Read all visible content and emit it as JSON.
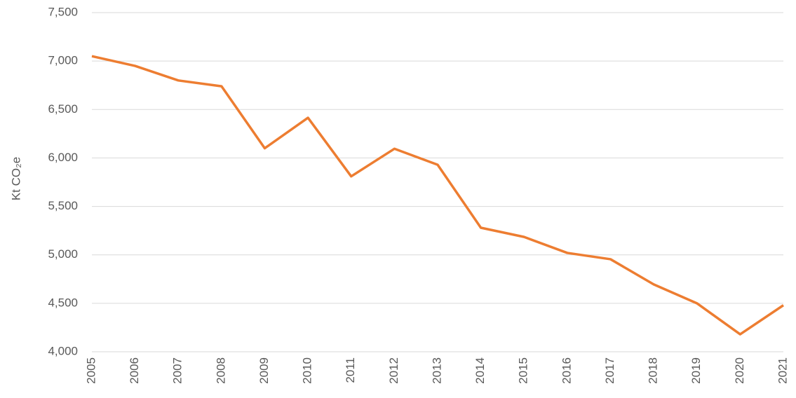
{
  "chart_data": {
    "type": "line",
    "y_label": "Kt CO₂e",
    "categories": [
      "2005",
      "2006",
      "2007",
      "2008",
      "2009",
      "2010",
      "2011",
      "2012",
      "2013",
      "2014",
      "2015",
      "2016",
      "2017",
      "2018",
      "2019",
      "2020",
      "2021"
    ],
    "series": [
      {
        "color": "#ed7d31",
        "values": [
          7050,
          6950,
          6800,
          6740,
          6100,
          6415,
          5810,
          6095,
          5930,
          5280,
          5185,
          5020,
          4955,
          4695,
          4500,
          4180,
          4480
        ]
      }
    ],
    "ylim": [
      4000,
      7500
    ],
    "yticks": [
      {
        "value": 4000,
        "label": "4,000"
      },
      {
        "value": 4500,
        "label": "4,500"
      },
      {
        "value": 5000,
        "label": "5,000"
      },
      {
        "value": 5500,
        "label": "5,500"
      },
      {
        "value": 6000,
        "label": "6,000"
      },
      {
        "value": 6500,
        "label": "6,500"
      },
      {
        "value": 7000,
        "label": "7,000"
      },
      {
        "value": 7500,
        "label": "7,500"
      }
    ],
    "grid": true
  }
}
